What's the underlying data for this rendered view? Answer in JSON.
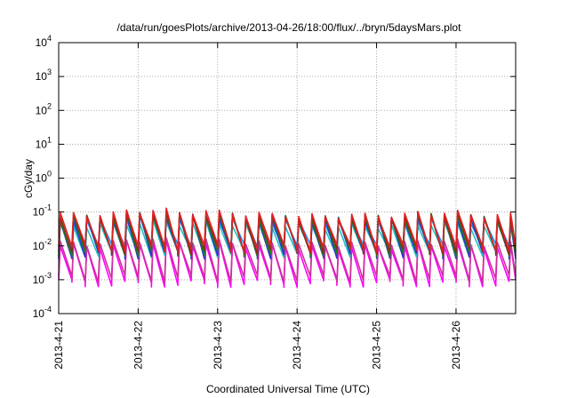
{
  "chart_data": {
    "type": "line",
    "title": "/data/run/goesPlots/archive/2013-04-26/18:00/flux/../bryn/5daysMars.plot",
    "xlabel": "Coordinated Universal Time (UTC)",
    "ylabel": "cGy/day",
    "yscale": "log",
    "ylim": [
      0.0001,
      10000
    ],
    "xlim": [
      "2013-04-21",
      "2013-04-26T18:00"
    ],
    "x_ticks": [
      "2013-4-21",
      "2013-4-22",
      "2013-4-23",
      "2013-4-24",
      "2013-4-25",
      "2013-4-26"
    ],
    "y_ticks": [
      {
        "base": "10",
        "exp": "-4"
      },
      {
        "base": "10",
        "exp": "-3"
      },
      {
        "base": "10",
        "exp": "-2"
      },
      {
        "base": "10",
        "exp": "-1"
      },
      {
        "base": "10",
        "exp": "0"
      },
      {
        "base": "10",
        "exp": "1"
      },
      {
        "base": "10",
        "exp": "2"
      },
      {
        "base": "10",
        "exp": "3"
      },
      {
        "base": "10",
        "exp": "4"
      }
    ],
    "grid": true,
    "sawtooth_period_hours": 4,
    "series": [
      {
        "color": "#e02020",
        "peak": [
          0.085,
          0.11,
          0.1,
          0.085,
          0.075,
          0.08,
          0.095,
          0.08
        ],
        "trough": 0.009
      },
      {
        "color": "#8b2c1a",
        "peak": [
          0.075,
          0.095,
          0.085,
          0.075,
          0.068,
          0.072,
          0.085,
          0.072
        ],
        "trough": 0.0075
      },
      {
        "color": "#1a7f1a",
        "peak": [
          0.07,
          0.088,
          0.08,
          0.07,
          0.064,
          0.068,
          0.08,
          0.068
        ],
        "trough": 0.0065
      },
      {
        "color": "#3333cc",
        "peak": [
          0.065,
          0.082,
          0.075,
          0.066,
          0.06,
          0.063,
          0.074,
          0.063
        ],
        "trough": 0.0055
      },
      {
        "color": "#1e90ff",
        "peak": [
          0.055,
          0.07,
          0.064,
          0.056,
          0.05,
          0.053,
          0.062,
          0.053
        ],
        "trough": 0.009
      },
      {
        "color": "#20c0c0",
        "peak": [
          0.04,
          0.05,
          0.046,
          0.04,
          0.037,
          0.039,
          0.045,
          0.039
        ],
        "trough": 0.006
      },
      {
        "color": "#cc3399",
        "peak": [
          0.012,
          0.015,
          0.014,
          0.012,
          0.011,
          0.0115,
          0.0135,
          0.0115
        ],
        "trough": 0.0011
      },
      {
        "color": "#ff00ff",
        "peak": [
          0.01,
          0.013,
          0.012,
          0.01,
          0.009,
          0.0095,
          0.011,
          0.0095
        ],
        "trough": 0.0008
      }
    ]
  }
}
